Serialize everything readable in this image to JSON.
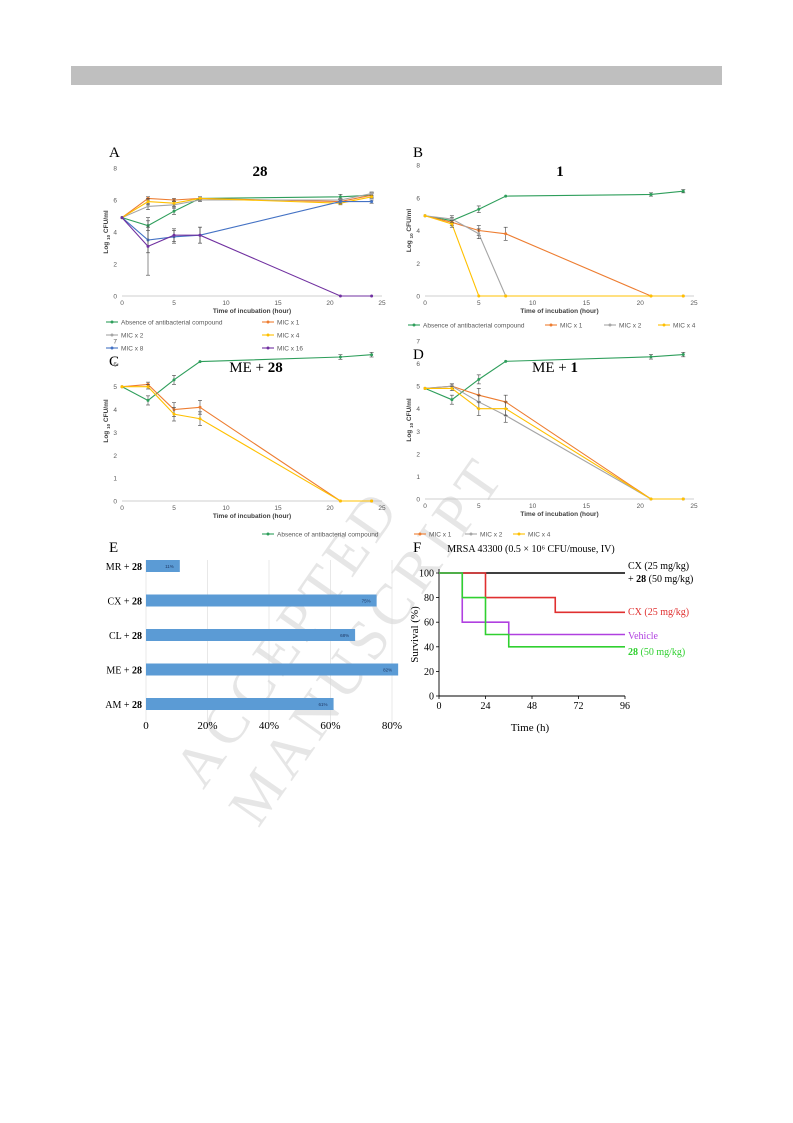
{
  "watermark": "ACCEPTED MANUSCRIPT",
  "chart_data": [
    {
      "panel": "A",
      "type": "line",
      "title": "28",
      "xlabel": "Time of incubation (hour)",
      "ylabel": "Log 10 CFU/ml",
      "xlim": [
        0,
        25
      ],
      "ylim": [
        0,
        8
      ],
      "xticks": [
        0,
        5,
        10,
        15,
        20,
        25
      ],
      "yticks": [
        0,
        2,
        4,
        6,
        8
      ],
      "x": [
        0,
        2.5,
        5,
        7.5,
        21,
        24
      ],
      "legend_position": "bottom",
      "series": [
        {
          "name": "Absence of antibacterial compound",
          "color": "#2e9e5b",
          "values": [
            4.9,
            4.4,
            5.3,
            6.1,
            6.2,
            6.3
          ],
          "err": [
            0.05,
            0.3,
            0.2,
            0.1,
            0.15,
            0.15
          ]
        },
        {
          "name": "MIC x 1",
          "color": "#ed7d31",
          "values": [
            4.9,
            6.1,
            6.0,
            6.1,
            5.9,
            6.3
          ],
          "err": [
            0.05,
            0.1,
            0.1,
            0.1,
            0.1,
            0.1
          ]
        },
        {
          "name": "MIC x 2",
          "color": "#a5a5a5",
          "values": [
            4.9,
            5.6,
            5.7,
            6.0,
            6.0,
            6.4
          ],
          "err": [
            0.05,
            0.2,
            0.2,
            0.1,
            0.1,
            0.1
          ]
        },
        {
          "name": "MIC x 4",
          "color": "#ffc000",
          "values": [
            4.9,
            5.9,
            5.8,
            6.1,
            5.8,
            6.2
          ],
          "err": [
            0.05,
            0.2,
            0.2,
            0.1,
            0.1,
            0.1
          ]
        },
        {
          "name": "MIC x 8",
          "color": "#4472c4",
          "values": [
            4.9,
            3.5,
            3.7,
            3.8,
            5.9,
            5.9
          ],
          "err": [
            0.05,
            0.8,
            0.4,
            0.5,
            0.1,
            0.1
          ]
        },
        {
          "name": "MIC x 16",
          "color": "#7030a0",
          "values": [
            4.9,
            3.1,
            3.8,
            3.8,
            0,
            0
          ],
          "err": [
            0.05,
            1.8,
            0.4,
            0.5,
            0,
            0
          ]
        }
      ]
    },
    {
      "panel": "B",
      "type": "line",
      "title": "1",
      "xlabel": "Time of incubation (hour)",
      "ylabel": "Log 10 CFU/ml",
      "xlim": [
        0,
        25
      ],
      "ylim": [
        0,
        8
      ],
      "xticks": [
        0,
        5,
        10,
        15,
        20,
        25
      ],
      "yticks": [
        0,
        2,
        4,
        6,
        8
      ],
      "legend_position": "bottom",
      "series": [
        {
          "name": "Absence of antibacterial compound",
          "color": "#2e9e5b",
          "x": [
            0,
            2.5,
            5,
            7.5,
            21,
            24
          ],
          "values": [
            4.9,
            4.6,
            5.3,
            6.1,
            6.2,
            6.4
          ],
          "err": [
            0.05,
            0.2,
            0.2,
            0.05,
            0.1,
            0.1
          ]
        },
        {
          "name": "MIC x 1",
          "color": "#ed7d31",
          "x": [
            0,
            2.5,
            5,
            7.5,
            21,
            24
          ],
          "values": [
            4.9,
            4.5,
            4.0,
            3.8,
            0,
            0
          ],
          "err": [
            0.05,
            0.2,
            0.3,
            0.4,
            0,
            0
          ]
        },
        {
          "name": "MIC x 2",
          "color": "#a5a5a5",
          "x": [
            0,
            2.5,
            5,
            7.5
          ],
          "values": [
            4.9,
            4.7,
            3.8,
            0
          ],
          "err": [
            0.05,
            0.2,
            0.3,
            0
          ]
        },
        {
          "name": "MIC x 4",
          "color": "#ffc000",
          "x": [
            0,
            2.5,
            5,
            7.5,
            21,
            24
          ],
          "values": [
            4.9,
            4.4,
            0,
            0,
            0,
            0
          ],
          "err": [
            0.05,
            0.2,
            0,
            0,
            0,
            0
          ]
        }
      ]
    },
    {
      "panel": "C",
      "type": "line",
      "title": "ME + 28",
      "xlabel": "Time of incubation (hour)",
      "ylabel": "Log 10 CFU/ml",
      "xlim": [
        0,
        25
      ],
      "ylim": [
        0,
        7
      ],
      "xticks": [
        0,
        5,
        10,
        15,
        20,
        25
      ],
      "yticks": [
        0,
        1,
        2,
        3,
        4,
        5,
        6,
        7
      ],
      "x": [
        0,
        2.5,
        5,
        7.5,
        21,
        24
      ],
      "series": [
        {
          "name": "Absence of antibacterial compound",
          "color": "#2e9e5b",
          "values": [
            5.0,
            4.4,
            5.3,
            6.1,
            6.3,
            6.4
          ],
          "err": [
            0.05,
            0.2,
            0.2,
            0.05,
            0.1,
            0.1
          ]
        },
        {
          "name": "MIC x 1",
          "color": "#ed7d31",
          "values": [
            5.0,
            5.1,
            4.0,
            4.1,
            0,
            0
          ],
          "err": [
            0.05,
            0.1,
            0.3,
            0.3,
            0,
            0
          ]
        },
        {
          "name": "MIC x 4",
          "color": "#ffc000",
          "values": [
            5.0,
            5.0,
            3.8,
            3.6,
            0,
            0
          ],
          "err": [
            0.05,
            0.1,
            0.3,
            0.3,
            0,
            0
          ]
        }
      ]
    },
    {
      "panel": "D",
      "type": "line",
      "title": "ME + 1",
      "xlabel": "Time of incubation (hour)",
      "ylabel": "Log 10 CFU/ml",
      "xlim": [
        0,
        25
      ],
      "ylim": [
        0,
        7
      ],
      "xticks": [
        0,
        5,
        10,
        15,
        20,
        25
      ],
      "yticks": [
        0,
        1,
        2,
        3,
        4,
        5,
        6,
        7
      ],
      "x": [
        0,
        2.5,
        5,
        7.5,
        21,
        24
      ],
      "legend_position": "bottom",
      "series": [
        {
          "name": "Absence of antibacterial compound",
          "color": "#2e9e5b",
          "values": [
            4.9,
            4.4,
            5.3,
            6.1,
            6.3,
            6.4
          ],
          "err": [
            0.05,
            0.2,
            0.2,
            0.05,
            0.1,
            0.1
          ]
        },
        {
          "name": "MIC x 1",
          "color": "#ed7d31",
          "values": [
            4.9,
            5.0,
            4.6,
            4.3,
            0,
            0
          ],
          "err": [
            0.05,
            0.1,
            0.3,
            0.3,
            0,
            0
          ]
        },
        {
          "name": "MIC x 2",
          "color": "#a5a5a5",
          "values": [
            4.9,
            5.0,
            4.3,
            3.7,
            0,
            0
          ],
          "err": [
            0.05,
            0.1,
            0.3,
            0.3,
            0,
            0
          ]
        },
        {
          "name": "MIC x 4",
          "color": "#ffc000",
          "values": [
            4.9,
            4.9,
            4.0,
            4.0,
            0,
            0
          ],
          "err": [
            0.05,
            0.1,
            0.3,
            0.3,
            0,
            0
          ]
        }
      ]
    },
    {
      "panel": "E",
      "type": "bar",
      "orientation": "horizontal",
      "categories": [
        "MR + 28",
        "CX + 28",
        "CL + 28",
        "ME + 28",
        "AM + 28"
      ],
      "category_prefix": [
        "MR + ",
        "CX + ",
        "CL + ",
        "ME + ",
        "AM + "
      ],
      "category_bold": [
        "28",
        "28",
        "28",
        "28",
        "28"
      ],
      "values": [
        0.11,
        0.75,
        0.68,
        0.82,
        0.61
      ],
      "value_labels": [
        "11%",
        "75%",
        "68%",
        "82%",
        "61%"
      ],
      "color": "#5b9bd5",
      "xlim": [
        0,
        0.8
      ],
      "xticks": [
        "0",
        "20%",
        "40%",
        "60%",
        "80%"
      ],
      "xtick_values": [
        0,
        0.2,
        0.4,
        0.6,
        0.8
      ]
    },
    {
      "panel": "F",
      "type": "line",
      "step": true,
      "title": "MRSA 43300 (0.5 × 10⁶ CFU/mouse, IV)",
      "xlabel": "Time (h)",
      "ylabel": "Survival (%)",
      "xlim": [
        0,
        96
      ],
      "ylim": [
        0,
        100
      ],
      "xticks": [
        0,
        24,
        48,
        72,
        96
      ],
      "yticks": [
        0,
        20,
        40,
        60,
        80,
        100
      ],
      "series": [
        {
          "name": "CX (25 mg/kg) + 28 (50 mg/kg)",
          "label_line1": "CX (25 mg/kg)",
          "label_line2_prefix": "+ ",
          "label_line2_bold": "28",
          "label_line2_suffix": " (50 mg/kg)",
          "color": "#000000",
          "points": [
            [
              0,
              100
            ],
            [
              96,
              100
            ]
          ]
        },
        {
          "name": "CX (25 mg/kg)",
          "label": "CX (25 mg/kg)",
          "color": "#e03030",
          "points": [
            [
              0,
              100
            ],
            [
              24,
              100
            ],
            [
              24,
              80
            ],
            [
              60,
              80
            ],
            [
              60,
              68
            ],
            [
              96,
              68
            ]
          ]
        },
        {
          "name": "Vehicle",
          "label": "Vehicle",
          "color": "#b040e0",
          "points": [
            [
              0,
              100
            ],
            [
              12,
              100
            ],
            [
              12,
              60
            ],
            [
              36,
              60
            ],
            [
              36,
              50
            ],
            [
              96,
              50
            ]
          ]
        },
        {
          "name": "28 (50 mg/kg)",
          "label_bold": "28",
          "label_suffix": " (50 mg/kg)",
          "color": "#30d030",
          "points": [
            [
              0,
              100
            ],
            [
              12,
              100
            ],
            [
              12,
              80
            ],
            [
              24,
              80
            ],
            [
              24,
              50
            ],
            [
              36,
              50
            ],
            [
              36,
              40
            ],
            [
              96,
              40
            ]
          ]
        }
      ]
    }
  ],
  "panels": {
    "A": {
      "letter": "A"
    },
    "B": {
      "letter": "B"
    },
    "C": {
      "letter": "C"
    },
    "D": {
      "letter": "D"
    },
    "E": {
      "letter": "E"
    },
    "F": {
      "letter": "F"
    }
  },
  "ylabel_parts": {
    "pre": "Log",
    "sub": "10",
    "post": "CFU/ml"
  },
  "titles": {
    "A": {
      "bold": "28"
    },
    "B": {
      "bold": "1"
    },
    "C": {
      "pre": "ME + ",
      "bold": "28"
    },
    "D": {
      "pre": "ME + ",
      "bold": "1"
    }
  }
}
